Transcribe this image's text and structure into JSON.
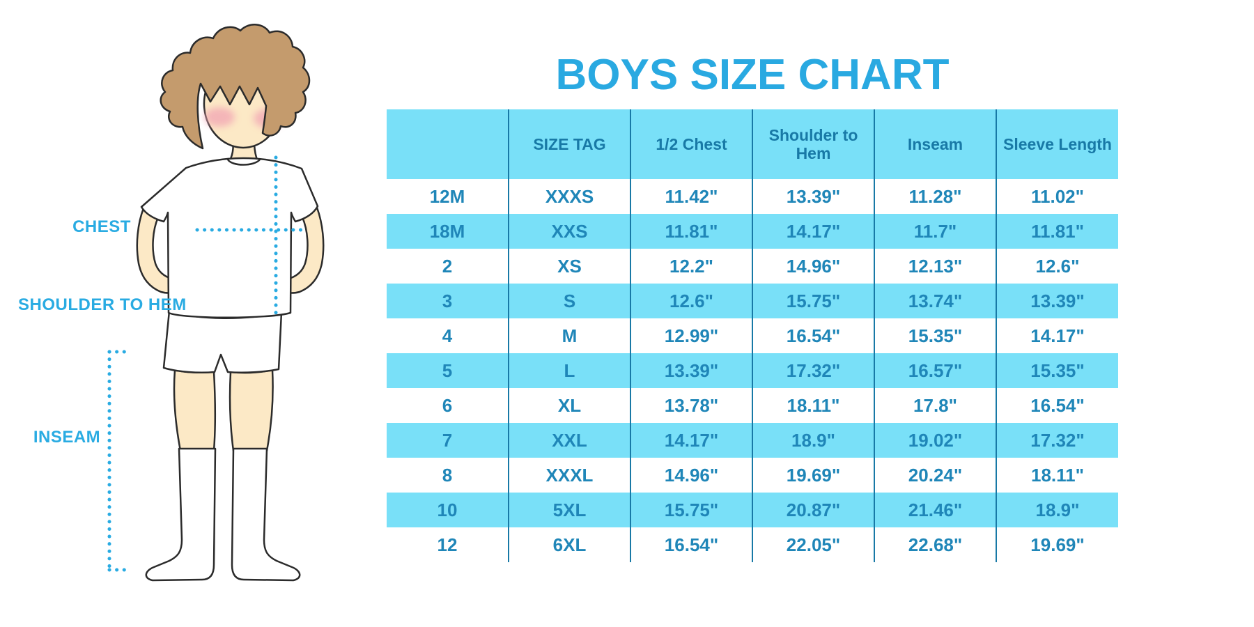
{
  "title": "BOYS SIZE CHART",
  "diagram": {
    "chest_label": "CHEST",
    "shoulder_to_hem_label": "SHOULDER TO HEM",
    "inseam_label": "INSEAM"
  },
  "colors": {
    "accent_blue": "#29ABE2",
    "row_highlight_blue": "#79E0F8",
    "cell_text_blue": "#1F86B8",
    "header_text_blue": "#1879A6",
    "grid_line_blue": "#1879A6",
    "skin": "#FCE9C6",
    "hair_brown": "#C49B6D",
    "cheek_pink": "#F2A4B4"
  },
  "table": {
    "columns": [
      "",
      "SIZE TAG",
      "1/2 Chest",
      "Shoulder to Hem",
      "Inseam",
      "Sleeve Length"
    ],
    "rows": [
      [
        "12M",
        "XXXS",
        "11.42\"",
        "13.39\"",
        "11.28\"",
        "11.02\""
      ],
      [
        "18M",
        "XXS",
        "11.81\"",
        "14.17\"",
        "11.7\"",
        "11.81\""
      ],
      [
        "2",
        "XS",
        "12.2\"",
        "14.96\"",
        "12.13\"",
        "12.6\""
      ],
      [
        "3",
        "S",
        "12.6\"",
        "15.75\"",
        "13.74\"",
        "13.39\""
      ],
      [
        "4",
        "M",
        "12.99\"",
        "16.54\"",
        "15.35\"",
        "14.17\""
      ],
      [
        "5",
        "L",
        "13.39\"",
        "17.32\"",
        "16.57\"",
        "15.35\""
      ],
      [
        "6",
        "XL",
        "13.78\"",
        "18.11\"",
        "17.8\"",
        "16.54\""
      ],
      [
        "7",
        "XXL",
        "14.17\"",
        "18.9\"",
        "19.02\"",
        "17.32\""
      ],
      [
        "8",
        "XXXL",
        "14.96\"",
        "19.69\"",
        "20.24\"",
        "18.11\""
      ],
      [
        "10",
        "5XL",
        "15.75\"",
        "20.87\"",
        "21.46\"",
        "18.9\""
      ],
      [
        "12",
        "6XL",
        "16.54\"",
        "22.05\"",
        "22.68\"",
        "19.69\""
      ]
    ]
  }
}
